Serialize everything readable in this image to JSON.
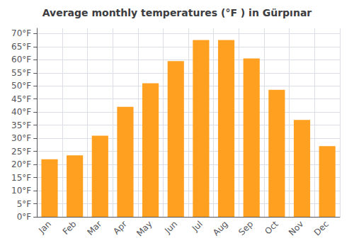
{
  "chart_data": {
    "type": "bar",
    "title": "Average monthly temperatures (°F ) in Gürpınar",
    "categories": [
      "Jan",
      "Feb",
      "Mar",
      "Apr",
      "May",
      "Jun",
      "Jul",
      "Aug",
      "Sep",
      "Oct",
      "Nov",
      "Dec"
    ],
    "values": [
      22,
      23.5,
      31,
      42,
      51,
      59.5,
      67.5,
      67.5,
      60.5,
      48.5,
      37,
      27
    ],
    "color": "#FFA020",
    "ylim": [
      0,
      72
    ],
    "yticks": [
      {
        "value": 0,
        "label": "0°F"
      },
      {
        "value": 5,
        "label": "5°F"
      },
      {
        "value": 10,
        "label": "10°F"
      },
      {
        "value": 15,
        "label": "15°F"
      },
      {
        "value": 20,
        "label": "20°F"
      },
      {
        "value": 25,
        "label": "25°F"
      },
      {
        "value": 30,
        "label": "30°F"
      },
      {
        "value": 35,
        "label": "35°F"
      },
      {
        "value": 40,
        "label": "40°F"
      },
      {
        "value": 45,
        "label": "45°F"
      },
      {
        "value": 50,
        "label": "50°F"
      },
      {
        "value": 55,
        "label": "55°F"
      },
      {
        "value": 60,
        "label": "60°F"
      },
      {
        "value": 65,
        "label": "65°F"
      },
      {
        "value": 70,
        "label": "70°F"
      }
    ],
    "grid": true
  }
}
